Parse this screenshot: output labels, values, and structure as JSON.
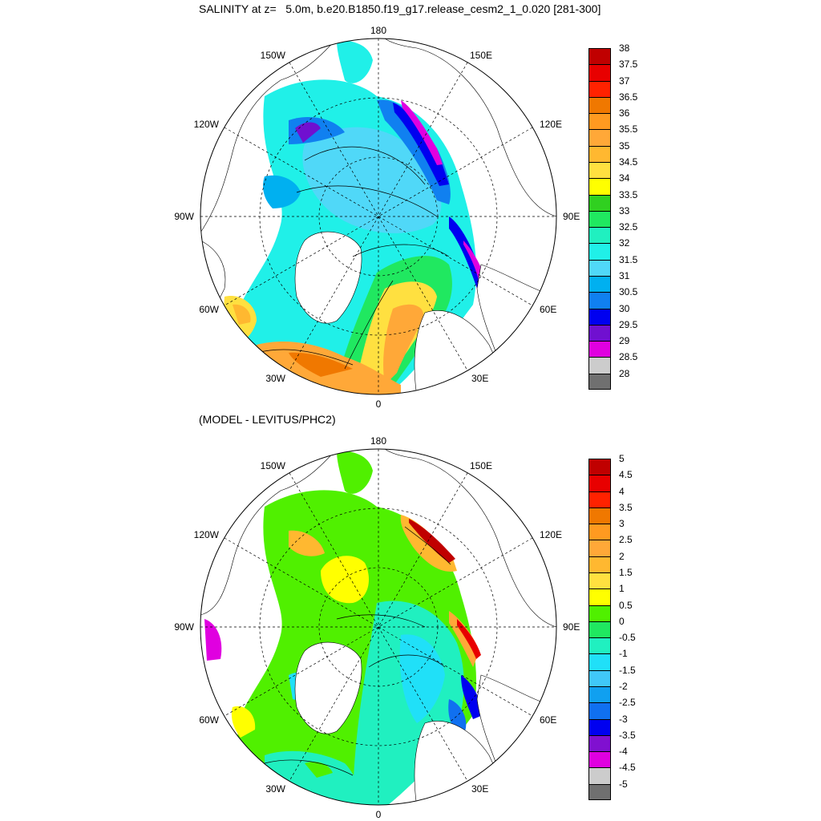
{
  "panels": [
    {
      "id": "top",
      "title": "SALINITY at z=   5.0m, b.e20.B1850.f19_g17.release_cesm2_1_0.020 [281-300]",
      "lon_labels": [
        "180",
        "150E",
        "120E",
        "90E",
        "60E",
        "30E",
        "0",
        "30W",
        "60W",
        "90W",
        "120W",
        "150W"
      ],
      "colorbar": {
        "labels": [
          "38",
          "37.5",
          "37",
          "36.5",
          "36",
          "35.5",
          "35",
          "34.5",
          "34",
          "33.5",
          "33",
          "32.5",
          "32",
          "31.5",
          "31",
          "30.5",
          "30",
          "29.5",
          "29",
          "28.5",
          "28"
        ],
        "colors": [
          "#c00000",
          "#e80000",
          "#ff2200",
          "#f07800",
          "#ff9a20",
          "#ffa838",
          "#ffb830",
          "#ffe040",
          "#ffff00",
          "#30d020",
          "#20e860",
          "#20f0c0",
          "#20f0e8",
          "#50d8f8",
          "#00b0f0",
          "#1080f0",
          "#0000f0",
          "#7010d0",
          "#e000e0",
          "#cccccc",
          "#707070"
        ]
      }
    },
    {
      "id": "bottom",
      "title": "(MODEL - LEVITUS/PHC2)",
      "lon_labels": [
        "180",
        "150E",
        "120E",
        "90E",
        "60E",
        "30E",
        "0",
        "30W",
        "60W",
        "90W",
        "120W",
        "150W"
      ],
      "colorbar": {
        "labels": [
          "5",
          "4.5",
          "4",
          "3.5",
          "3",
          "2.5",
          "2",
          "1.5",
          "1",
          "0.5",
          "0",
          "-0.5",
          "-1",
          "-1.5",
          "-2",
          "-2.5",
          "-3",
          "-3.5",
          "-4",
          "-4.5",
          "-5"
        ],
        "colors": [
          "#c00000",
          "#e80000",
          "#ff2200",
          "#f07800",
          "#ff9a20",
          "#ffa838",
          "#ffb830",
          "#ffe040",
          "#ffff00",
          "#50f000",
          "#20e860",
          "#20f0c0",
          "#20e0f8",
          "#40c8f8",
          "#10a0f0",
          "#1070f0",
          "#0000f0",
          "#8010d0",
          "#e000e0",
          "#cccccc",
          "#707070"
        ]
      }
    }
  ]
}
